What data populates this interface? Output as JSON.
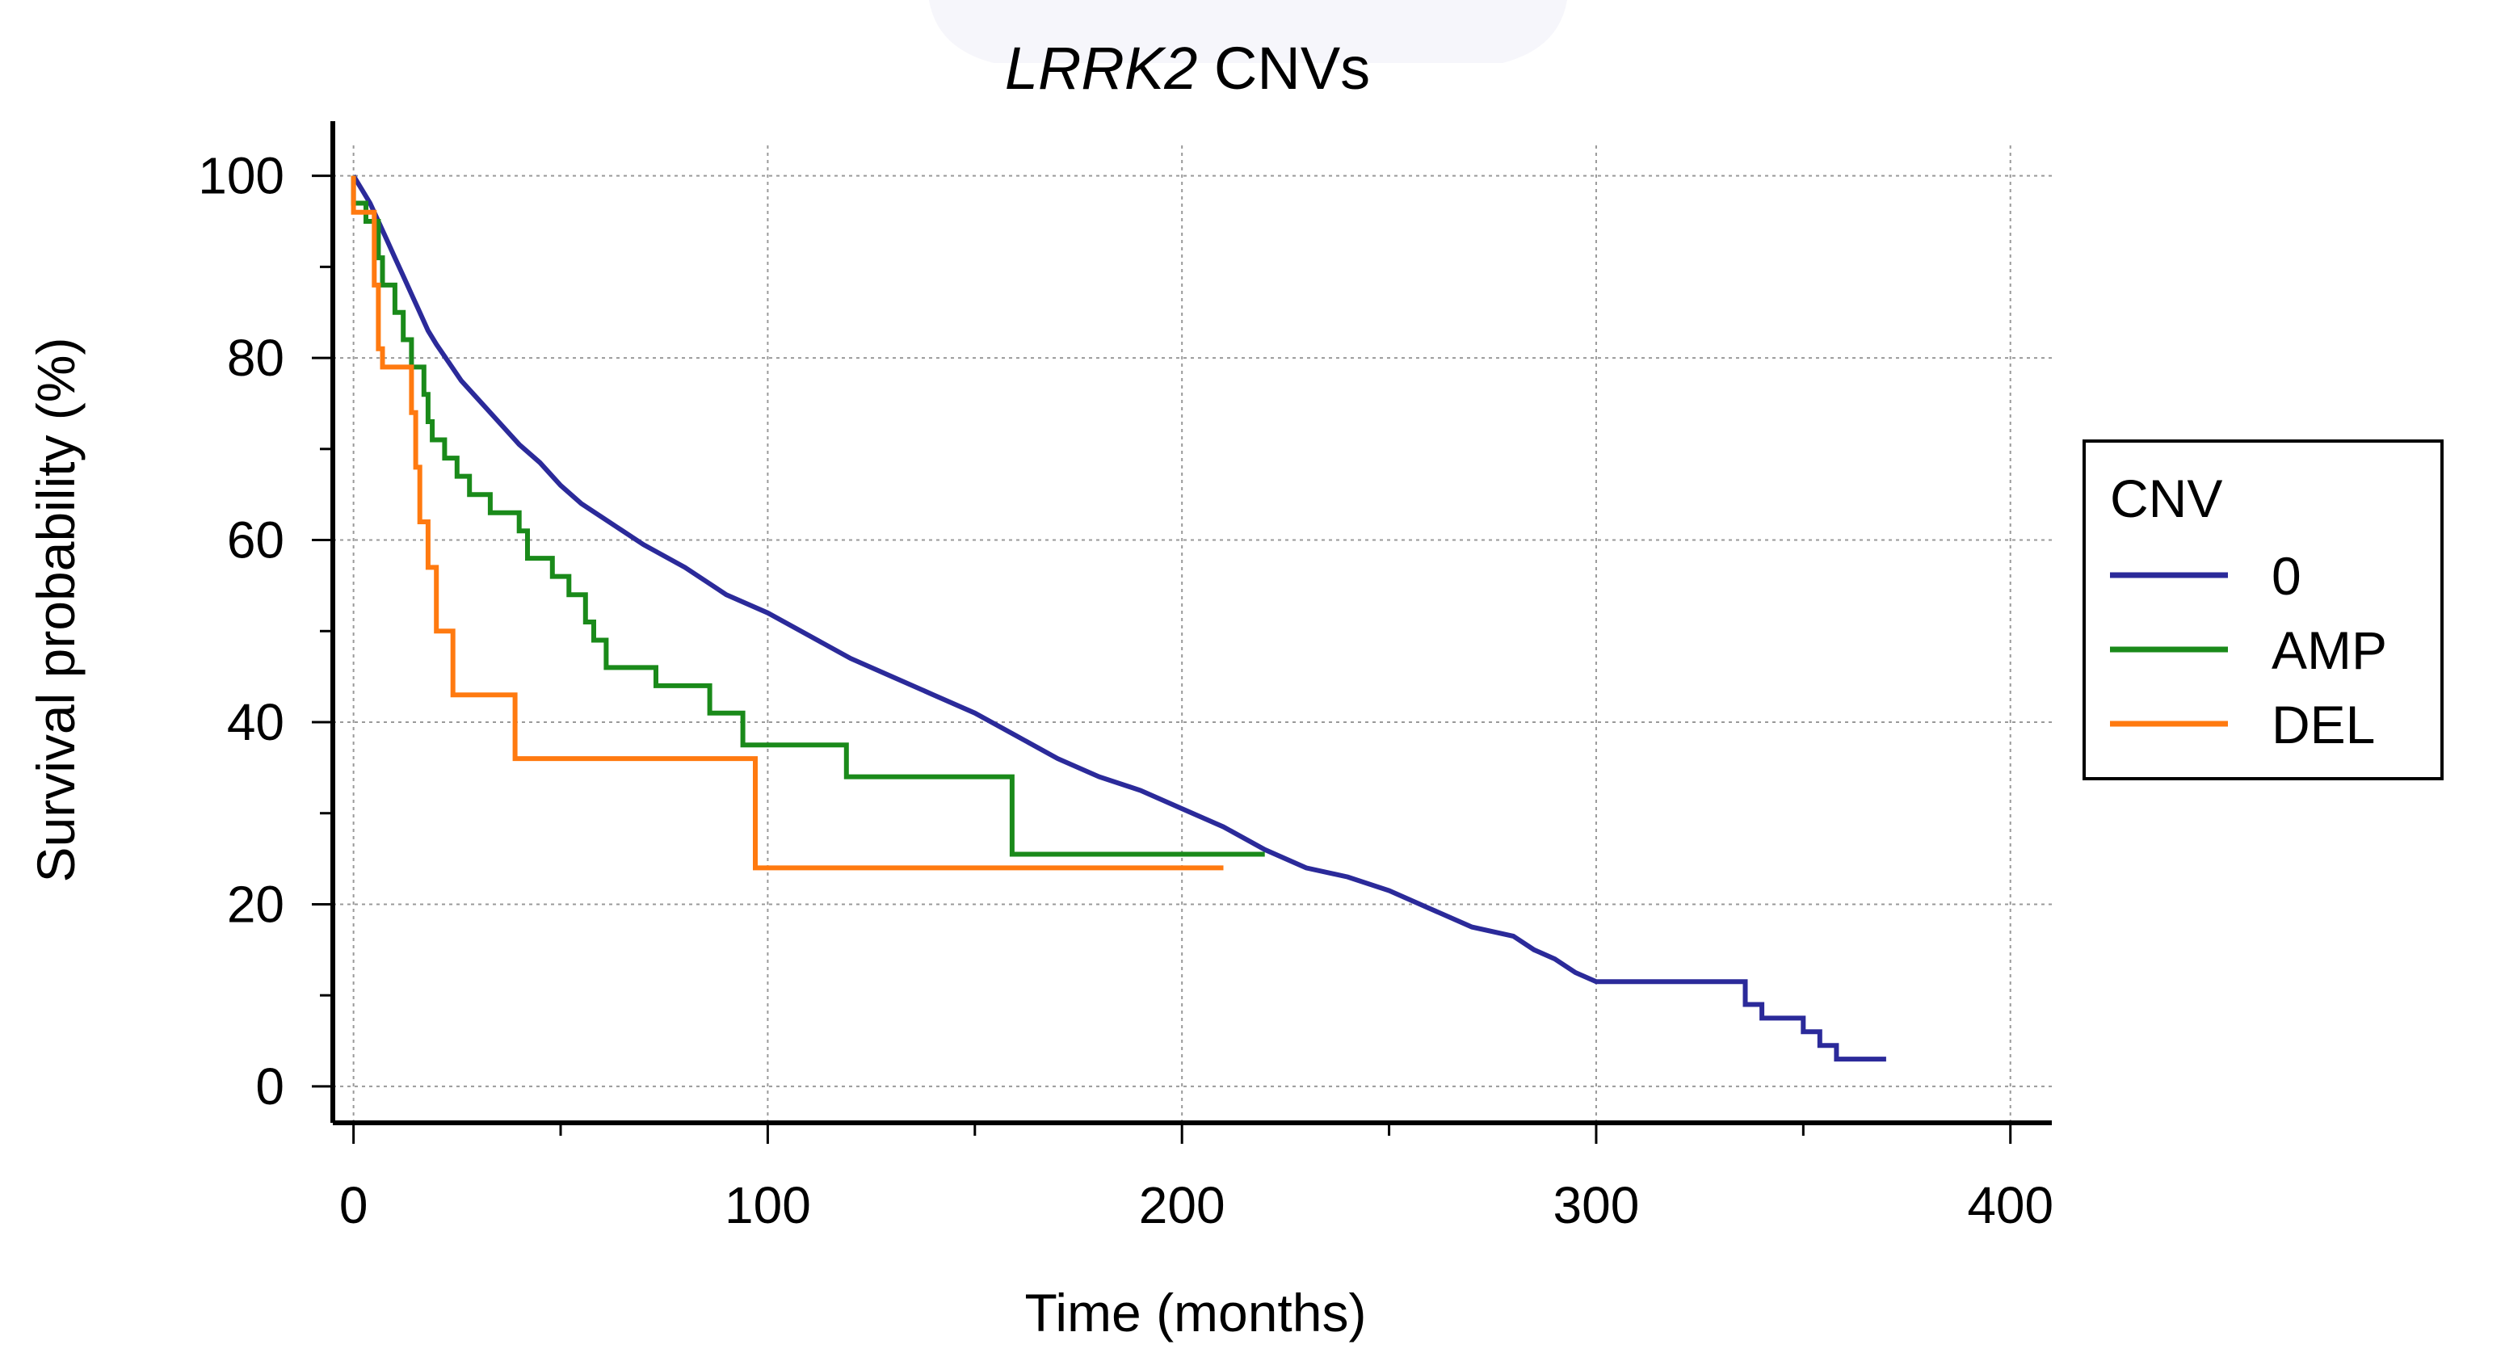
{
  "chart_data": {
    "type": "line",
    "subtype": "kaplan-meier step",
    "title": {
      "italic": "LRRK2",
      "rest": " CNVs"
    },
    "xlabel": "Time (months)",
    "ylabel": "Survival probability (%)",
    "xlim": [
      -5,
      410
    ],
    "ylim": [
      -4,
      106
    ],
    "xticks": [
      0,
      100,
      200,
      300,
      400
    ],
    "xticks_minor": [
      50,
      150,
      250,
      350
    ],
    "yticks": [
      0,
      20,
      40,
      60,
      80,
      100
    ],
    "yticks_minor": [
      10,
      30,
      50,
      70,
      90
    ],
    "grid": true,
    "legend": {
      "title": "CNV",
      "position": "right"
    },
    "series": [
      {
        "name": "0",
        "color": "#2b2a9a",
        "points": [
          [
            0,
            100
          ],
          [
            2,
            98.5
          ],
          [
            4,
            97
          ],
          [
            6,
            95
          ],
          [
            8,
            93
          ],
          [
            10,
            91
          ],
          [
            12,
            89
          ],
          [
            14,
            87
          ],
          [
            16,
            85
          ],
          [
            18,
            83
          ],
          [
            20,
            81.5
          ],
          [
            23,
            79.5
          ],
          [
            26,
            77.5
          ],
          [
            30,
            75.5
          ],
          [
            35,
            73
          ],
          [
            40,
            70.5
          ],
          [
            45,
            68.5
          ],
          [
            50,
            66
          ],
          [
            55,
            64
          ],
          [
            60,
            62.5
          ],
          [
            65,
            61
          ],
          [
            70,
            59.5
          ],
          [
            80,
            57
          ],
          [
            90,
            54
          ],
          [
            100,
            52
          ],
          [
            110,
            49.5
          ],
          [
            120,
            47
          ],
          [
            130,
            45
          ],
          [
            140,
            43
          ],
          [
            150,
            41
          ],
          [
            160,
            38.5
          ],
          [
            170,
            36
          ],
          [
            180,
            34
          ],
          [
            190,
            32.5
          ],
          [
            200,
            30.5
          ],
          [
            210,
            28.5
          ],
          [
            220,
            26
          ],
          [
            230,
            24
          ],
          [
            240,
            23
          ],
          [
            250,
            21.5
          ],
          [
            260,
            19.5
          ],
          [
            270,
            17.5
          ],
          [
            280,
            16.5
          ],
          [
            285,
            15
          ],
          [
            290,
            14
          ],
          [
            295,
            12.5
          ],
          [
            300,
            11.5
          ],
          [
            336,
            11.5
          ],
          [
            336,
            9
          ],
          [
            340,
            9
          ],
          [
            340,
            7.5
          ],
          [
            350,
            7.5
          ],
          [
            350,
            6
          ],
          [
            354,
            6
          ],
          [
            354,
            4.5
          ],
          [
            358,
            4.5
          ],
          [
            358,
            3
          ],
          [
            370,
            3
          ]
        ]
      },
      {
        "name": "AMP",
        "color": "#1a8a1a",
        "points": [
          [
            0,
            100
          ],
          [
            0,
            97
          ],
          [
            3,
            97
          ],
          [
            3,
            95
          ],
          [
            6,
            95
          ],
          [
            6,
            91
          ],
          [
            7,
            91
          ],
          [
            7,
            88
          ],
          [
            10,
            88
          ],
          [
            10,
            85
          ],
          [
            12,
            85
          ],
          [
            12,
            82
          ],
          [
            14,
            82
          ],
          [
            14,
            79
          ],
          [
            17,
            79
          ],
          [
            17,
            76
          ],
          [
            18,
            76
          ],
          [
            18,
            73
          ],
          [
            19,
            73
          ],
          [
            19,
            71
          ],
          [
            22,
            71
          ],
          [
            22,
            69
          ],
          [
            25,
            69
          ],
          [
            25,
            67
          ],
          [
            28,
            67
          ],
          [
            28,
            65
          ],
          [
            33,
            65
          ],
          [
            33,
            63
          ],
          [
            40,
            63
          ],
          [
            40,
            61
          ],
          [
            42,
            61
          ],
          [
            42,
            58
          ],
          [
            48,
            58
          ],
          [
            48,
            56
          ],
          [
            52,
            56
          ],
          [
            52,
            54
          ],
          [
            56,
            54
          ],
          [
            56,
            51
          ],
          [
            58,
            51
          ],
          [
            58,
            49
          ],
          [
            61,
            49
          ],
          [
            61,
            46
          ],
          [
            73,
            46
          ],
          [
            73,
            44
          ],
          [
            86,
            44
          ],
          [
            86,
            41
          ],
          [
            94,
            41
          ],
          [
            94,
            37.5
          ],
          [
            119,
            37.5
          ],
          [
            119,
            34
          ],
          [
            159,
            34
          ],
          [
            159,
            25.5
          ],
          [
            220,
            25.5
          ]
        ]
      },
      {
        "name": "DEL",
        "color": "#ff7a10",
        "points": [
          [
            0,
            100
          ],
          [
            0,
            96
          ],
          [
            5,
            96
          ],
          [
            5,
            88
          ],
          [
            6,
            88
          ],
          [
            6,
            81
          ],
          [
            7,
            81
          ],
          [
            7,
            79
          ],
          [
            14,
            79
          ],
          [
            14,
            74
          ],
          [
            15,
            74
          ],
          [
            15,
            68
          ],
          [
            16,
            68
          ],
          [
            16,
            62
          ],
          [
            18,
            62
          ],
          [
            18,
            57
          ],
          [
            20,
            57
          ],
          [
            20,
            50
          ],
          [
            24,
            50
          ],
          [
            24,
            43
          ],
          [
            39,
            43
          ],
          [
            39,
            36
          ],
          [
            97,
            36
          ],
          [
            97,
            24
          ],
          [
            210,
            24
          ]
        ]
      }
    ]
  }
}
